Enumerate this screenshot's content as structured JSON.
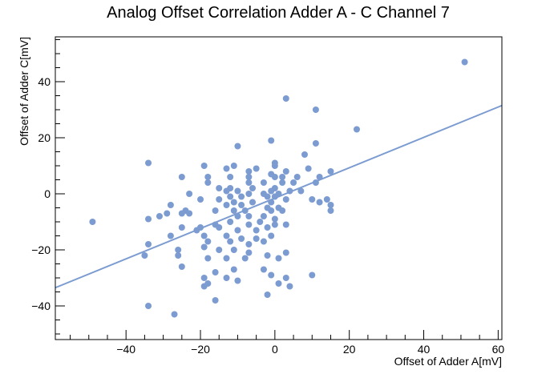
{
  "chart_data": {
    "type": "scatter",
    "title": "Analog Offset Correlation Adder A - C Channel 7",
    "xlabel": "Offset of Adder A[mV]",
    "ylabel": "Offset of Adder C[mV]",
    "xlim": [
      -59,
      61
    ],
    "ylim": [
      -52,
      56
    ],
    "xticks": [
      -40,
      -20,
      0,
      20,
      40,
      60
    ],
    "yticks": [
      -40,
      -20,
      0,
      20,
      40
    ],
    "xtick_labels": [
      "−40",
      "−20",
      "0",
      "20",
      "40",
      "60"
    ],
    "ytick_labels": [
      "−40",
      "−20",
      "0",
      "20",
      "40"
    ],
    "grid": false,
    "colors": {
      "points": "#7b9bd1",
      "fit_line": "#7b9bd1",
      "frame": "#000000"
    },
    "fit_line": {
      "x": [
        -59,
        61
      ],
      "y": [
        -33.5,
        31.5
      ]
    },
    "points": [
      [
        51,
        47
      ],
      [
        3,
        34
      ],
      [
        11,
        30
      ],
      [
        22,
        23
      ],
      [
        -1,
        19
      ],
      [
        -10,
        17
      ],
      [
        11,
        18
      ],
      [
        -34,
        11
      ],
      [
        8,
        14
      ],
      [
        0,
        11
      ],
      [
        0,
        10
      ],
      [
        9,
        9
      ],
      [
        -19,
        10
      ],
      [
        -13,
        9
      ],
      [
        -11,
        10
      ],
      [
        -7,
        8
      ],
      [
        -5,
        9
      ],
      [
        -1,
        7
      ],
      [
        3,
        8
      ],
      [
        15,
        8
      ],
      [
        -25,
        6
      ],
      [
        -18,
        6
      ],
      [
        -12,
        6
      ],
      [
        -7,
        6
      ],
      [
        0,
        6
      ],
      [
        2,
        6
      ],
      [
        6,
        6
      ],
      [
        12,
        6
      ],
      [
        -18,
        4
      ],
      [
        -7,
        4
      ],
      [
        -3,
        4
      ],
      [
        2,
        4
      ],
      [
        5,
        4
      ],
      [
        11,
        4
      ],
      [
        -12,
        2
      ],
      [
        -15,
        2
      ],
      [
        -6,
        2
      ],
      [
        0,
        2
      ],
      [
        -23,
        0
      ],
      [
        -13,
        1
      ],
      [
        -10,
        1
      ],
      [
        -7,
        0
      ],
      [
        -3,
        0
      ],
      [
        -1,
        1
      ],
      [
        1,
        0
      ],
      [
        4,
        1
      ],
      [
        7,
        1
      ],
      [
        -12,
        -1
      ],
      [
        -9,
        -1
      ],
      [
        -2,
        -1
      ],
      [
        0,
        -1
      ],
      [
        14,
        -2
      ],
      [
        -20,
        -2
      ],
      [
        -15,
        -2
      ],
      [
        -11,
        -3
      ],
      [
        -6,
        -3
      ],
      [
        -1,
        -3
      ],
      [
        3,
        -2
      ],
      [
        10,
        -2
      ],
      [
        12,
        -3
      ],
      [
        -28,
        -4
      ],
      [
        -13,
        -4
      ],
      [
        -9,
        -4
      ],
      [
        -2,
        -5
      ],
      [
        1,
        -5
      ],
      [
        15,
        -4
      ],
      [
        -24,
        -6
      ],
      [
        -16,
        -6
      ],
      [
        -11,
        -6
      ],
      [
        -8,
        -6
      ],
      [
        -1,
        -6
      ],
      [
        2,
        -6
      ],
      [
        15,
        -6
      ],
      [
        -34,
        -9
      ],
      [
        -31,
        -8
      ],
      [
        -29,
        -7
      ],
      [
        -25,
        -7
      ],
      [
        -23,
        -7
      ],
      [
        -10,
        -8
      ],
      [
        -7,
        -8
      ],
      [
        -3,
        -8
      ],
      [
        0,
        -9
      ],
      [
        -49,
        -10
      ],
      [
        -20,
        -12
      ],
      [
        -16,
        -11
      ],
      [
        -12,
        -10
      ],
      [
        -7,
        -11
      ],
      [
        -4,
        -10
      ],
      [
        0,
        -11
      ],
      [
        3,
        -11
      ],
      [
        -25,
        -12
      ],
      [
        -21,
        -13
      ],
      [
        -15,
        -12
      ],
      [
        -10,
        -13
      ],
      [
        -5,
        -13
      ],
      [
        -2,
        -12
      ],
      [
        -28,
        -15
      ],
      [
        -19,
        -15
      ],
      [
        -13,
        -15
      ],
      [
        -9,
        -16
      ],
      [
        -5,
        -16
      ],
      [
        -1,
        -15
      ],
      [
        -34,
        -18
      ],
      [
        -18,
        -17
      ],
      [
        -12,
        -17
      ],
      [
        -7,
        -18
      ],
      [
        -3,
        -17
      ],
      [
        -26,
        -20
      ],
      [
        -19,
        -19
      ],
      [
        -15,
        -20
      ],
      [
        -11,
        -20
      ],
      [
        -7,
        -21
      ],
      [
        -2,
        -22
      ],
      [
        3,
        -21
      ],
      [
        -35,
        -22
      ],
      [
        -26,
        -22
      ],
      [
        -18,
        -23
      ],
      [
        -13,
        -23
      ],
      [
        -8,
        -23
      ],
      [
        1,
        -23
      ],
      [
        -25,
        -26
      ],
      [
        -16,
        -28
      ],
      [
        -11,
        -27
      ],
      [
        -3,
        -27
      ],
      [
        -19,
        -30
      ],
      [
        -13,
        -30
      ],
      [
        -1,
        -29
      ],
      [
        3,
        -30
      ],
      [
        10,
        -29
      ],
      [
        -18,
        -32
      ],
      [
        -19,
        -33
      ],
      [
        -10,
        -31
      ],
      [
        1,
        -32
      ],
      [
        4,
        -33
      ],
      [
        -2,
        -36
      ],
      [
        -16,
        -38
      ],
      [
        -34,
        -40
      ],
      [
        -27,
        -43
      ]
    ]
  }
}
